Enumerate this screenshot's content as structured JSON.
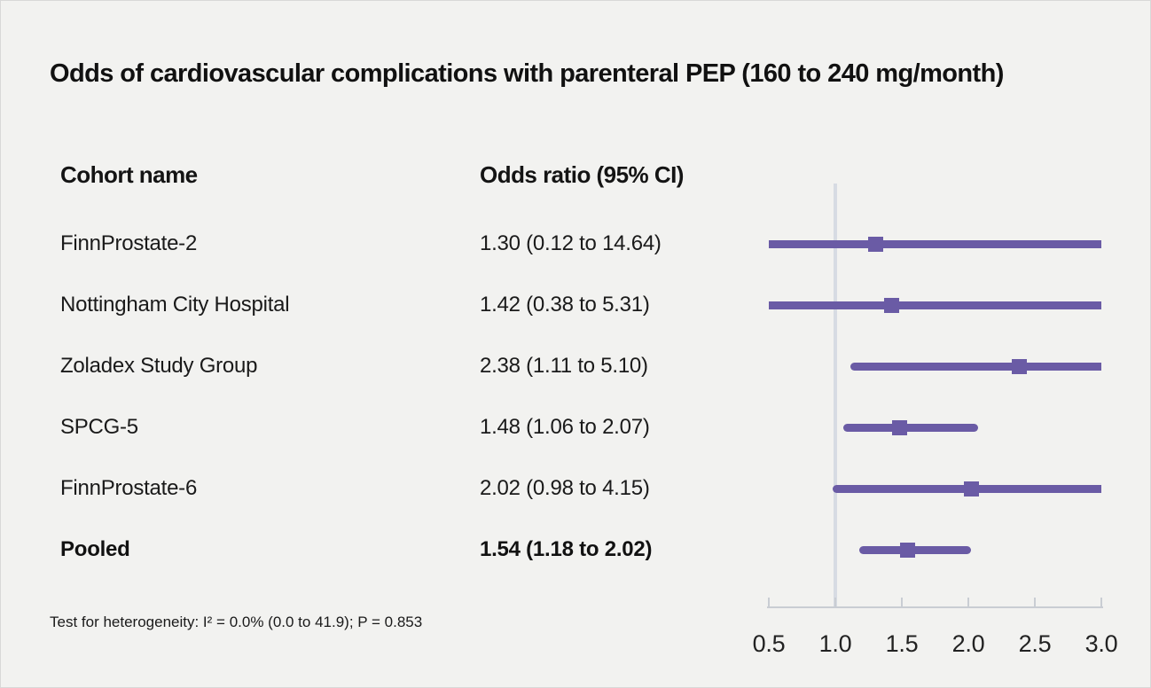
{
  "title": "Odds of cardiovascular complications with parenteral PEP (160 to 240 mg/month)",
  "columns": {
    "cohort": "Cohort name",
    "odds": "Odds ratio (95% CI)"
  },
  "footnote": "Test for heterogeneity: I² = 0.0% (0.0 to 41.9); P = 0.853",
  "colors": {
    "background": "#f2f2f0",
    "marker_purple": "#6a5ba5",
    "reference_line": "#d7dbe3",
    "axis": "#c9cdd3",
    "text": "#141414"
  },
  "chart_data": {
    "type": "scatter",
    "subtype": "forest-plot",
    "title": "Odds of cardiovascular complications with parenteral PEP (160 to 240 mg/month)",
    "xlabel": "",
    "ylabel": "",
    "xlim": [
      0.5,
      3.0
    ],
    "reference_line_x": 1.0,
    "grid": false,
    "tick_labels": [
      "0.5",
      "1.0",
      "1.5",
      "2.0",
      "2.5",
      "3.0"
    ],
    "tick_values": [
      0.5,
      1.0,
      1.5,
      2.0,
      2.5,
      3.0
    ],
    "rows": [
      {
        "cohort": "FinnProstate-2",
        "label": "1.30 (0.12 to 14.64)",
        "estimate": 1.3,
        "ci_low": 0.12,
        "ci_high": 14.64,
        "bold": false
      },
      {
        "cohort": "Nottingham City Hospital",
        "label": "1.42 (0.38 to 5.31)",
        "estimate": 1.42,
        "ci_low": 0.38,
        "ci_high": 5.31,
        "bold": false
      },
      {
        "cohort": "Zoladex Study Group",
        "label": "2.38 (1.11 to 5.10)",
        "estimate": 2.38,
        "ci_low": 1.11,
        "ci_high": 5.1,
        "bold": false
      },
      {
        "cohort": "SPCG-5",
        "label": "1.48 (1.06 to 2.07)",
        "estimate": 1.48,
        "ci_low": 1.06,
        "ci_high": 2.07,
        "bold": false
      },
      {
        "cohort": "FinnProstate-6",
        "label": "2.02 (0.98 to 4.15)",
        "estimate": 2.02,
        "ci_low": 0.98,
        "ci_high": 4.15,
        "bold": false
      },
      {
        "cohort": "Pooled",
        "label": "1.54 (1.18 to 2.02)",
        "estimate": 1.54,
        "ci_low": 1.18,
        "ci_high": 2.02,
        "bold": true
      }
    ],
    "heterogeneity_note": "Test for heterogeneity: I² = 0.0% (0.0 to 41.9); P = 0.853"
  }
}
